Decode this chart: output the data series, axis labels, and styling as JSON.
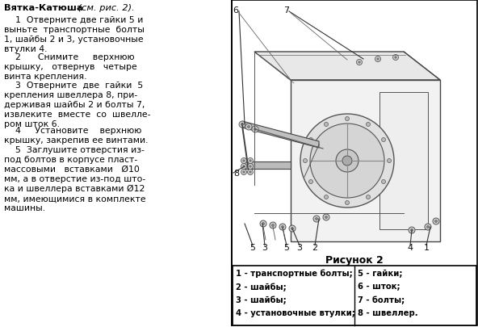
{
  "title_bold": "Вятка-Катюша",
  "title_italic": " (см. рис. 2).",
  "para1": "    1  Отверните две гайки 5 и\nвыньте  транспортные  болты\n1, шайбы 2 и 3, установочные\nвтулки 4.",
  "para2": "    2      Снимите     верхнюю\nкрышку,   отвернув   четыре\nвинта крепления.",
  "para3": "    3  Отверните  две  гайки  5\nкрепления швеллера 8, при-\nдерживая шайбы 2 и болты 7,\nизвлеките  вместе  со  швелле-\nром шток 6.",
  "para4": "    4     Установите    верхнюю\nкрышку, закрепив ее винтами.",
  "para5": "    5  Заглушите отверстия из-\nпод болтов в корпусе пласт-\nмассовыми   вставками   Ø10\nмм, а в отверстие из-под што-\nка и швеллера вставками Ø12\nмм, имеющимися в комплекте\nмашины.",
  "figure_caption": "Рисунок 2",
  "legend_left": [
    "1 - транспортные болты;",
    "2 - шайбы;",
    "3 - шайбы;",
    "4 - установочные втулки;"
  ],
  "legend_right": [
    "5 - гайки;",
    "6 - шток;",
    "7 - болты;",
    "8 - швеллер."
  ],
  "bg_color": "#ffffff",
  "text_color": "#000000"
}
